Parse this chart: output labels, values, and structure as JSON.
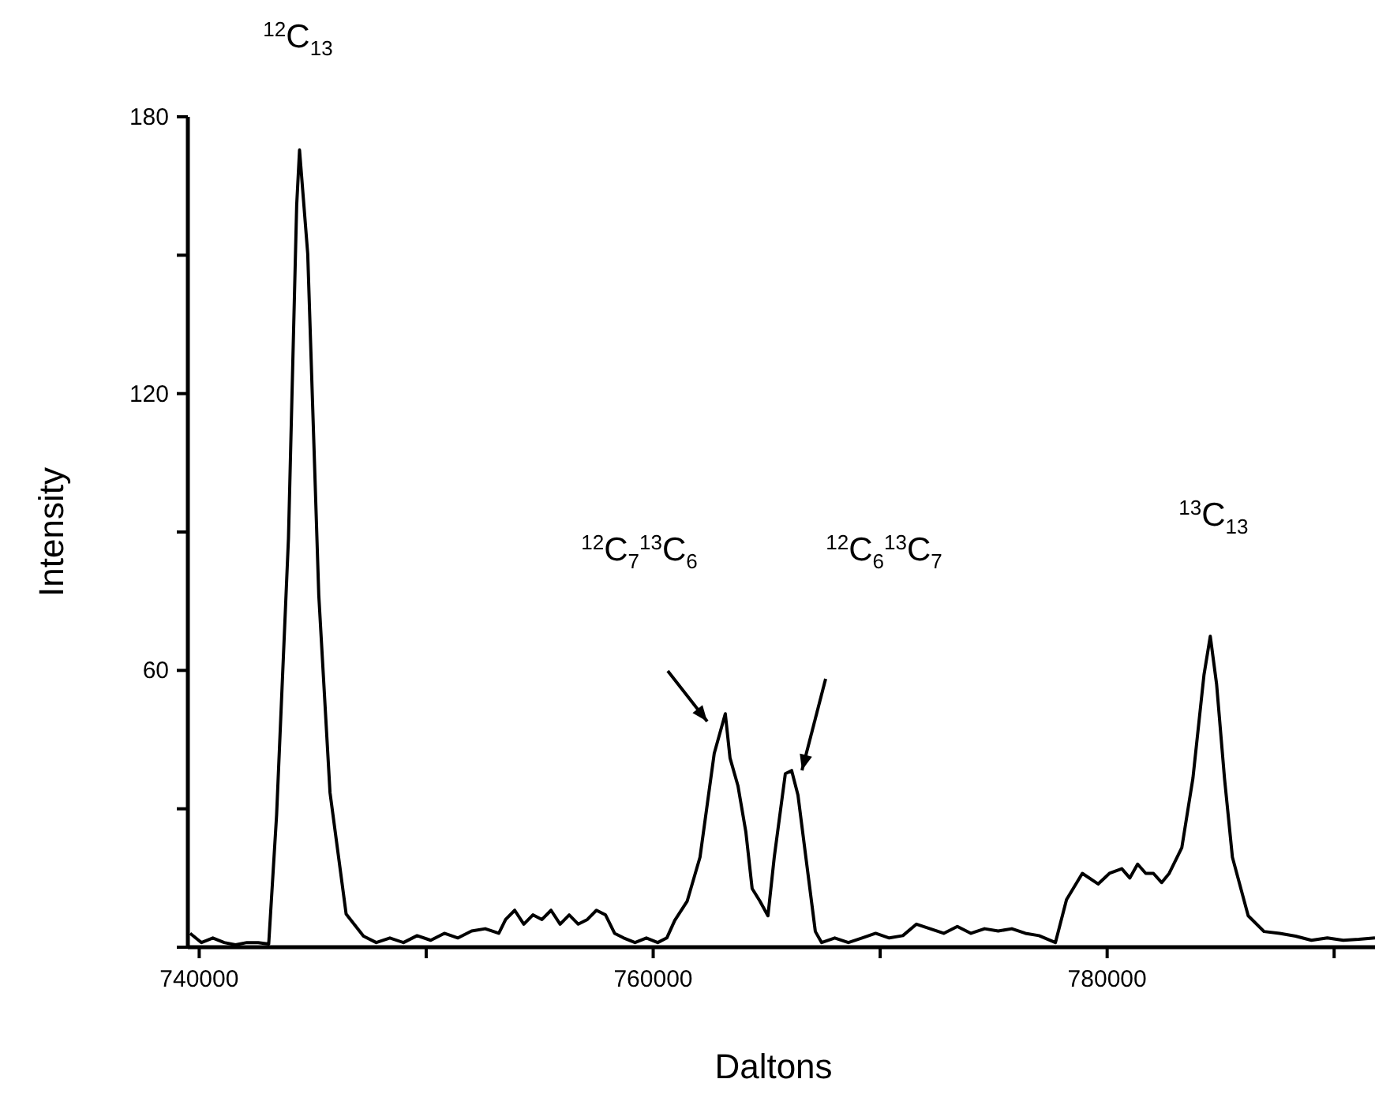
{
  "chart_data": {
    "type": "line",
    "xlabel": "Daltons",
    "ylabel": "Intensity",
    "xlim": [
      739500,
      791800
    ],
    "ylim": [
      0,
      180
    ],
    "xticks": [
      740000,
      {
        "value": 750000,
        "label": null
      },
      760000,
      {
        "value": 770000,
        "label": null
      },
      780000,
      {
        "value": 790000,
        "label": null
      }
    ],
    "yticks": [
      {
        "value": 0,
        "label": null
      },
      {
        "value": 30,
        "label": null
      },
      60,
      {
        "value": 90,
        "label": null
      },
      120,
      {
        "value": 150,
        "label": null
      },
      180
    ],
    "grid": false,
    "marker": "none",
    "line_style": "solid",
    "series": [
      {
        "color": "#000000",
        "x": [
          739600,
          740100,
          740600,
          741100,
          741600,
          742100,
          742600,
          743062,
          743410,
          743932,
          744294,
          744420,
          744781,
          745268,
          745763,
          746473,
          747238,
          747800,
          748400,
          749000,
          749600,
          750200,
          750800,
          751400,
          752000,
          752600,
          753200,
          753500,
          753900,
          754300,
          754700,
          755100,
          755500,
          755900,
          756300,
          756700,
          757100,
          757500,
          757900,
          758300,
          758700,
          759200,
          759700,
          760200,
          760600,
          760950,
          761500,
          762063,
          762690,
          763177,
          763386,
          763734,
          764082,
          764360,
          764700,
          765056,
          765334,
          765822,
          766100,
          766378,
          766726,
          767144,
          767422,
          768000,
          768600,
          769200,
          769800,
          770400,
          771000,
          771600,
          772200,
          772800,
          773400,
          774000,
          774600,
          775200,
          775800,
          776400,
          777000,
          777720,
          778210,
          778906,
          779602,
          780100,
          780646,
          781000,
          781342,
          781700,
          782038,
          782400,
          782734,
          783290,
          783778,
          784265,
          784543,
          784822,
          785170,
          785518,
          786214,
          786910,
          787600,
          788302,
          789000,
          789700,
          790400,
          791086,
          791800
        ],
        "values": [
          3,
          1,
          2,
          1,
          0.5,
          1,
          1,
          0.7,
          28.7,
          88.6,
          160.8,
          172.8,
          150.3,
          76.3,
          33.5,
          7.2,
          2.4,
          1,
          2,
          1,
          2.5,
          1.5,
          3,
          2,
          3.5,
          4,
          3,
          6,
          8,
          5,
          7,
          6,
          8,
          5,
          7,
          5,
          6,
          8,
          7,
          3,
          2,
          1,
          2,
          1,
          2,
          5.8,
          10,
          19.5,
          42,
          50.6,
          41,
          35,
          25,
          12.7,
          10,
          6.8,
          19.5,
          37.6,
          38.3,
          33,
          19.5,
          3.4,
          1,
          2,
          1,
          2,
          3,
          2,
          2.5,
          5,
          4,
          3,
          4.5,
          3,
          4,
          3.5,
          4,
          3,
          2.5,
          1,
          10.3,
          16,
          13.7,
          16,
          17,
          15,
          18,
          16,
          16,
          14,
          16,
          21.6,
          36.6,
          59,
          67.4,
          57,
          36.6,
          19.5,
          6.8,
          3.4,
          3,
          2.4,
          1.5,
          2,
          1.5,
          1.7,
          2
        ]
      }
    ],
    "annotations": [
      {
        "text": "$^{12}$C$_{13}$",
        "x": 744420,
        "y": 172.8
      },
      "$^{12}$C$_{7}$$^{13}$C$_{6}$",
      "$^{12}$C$_{6}$$^{13}$C$_{7}$",
      {
        "text": "$^{13}$C$_{13}$",
        "x": 784543,
        "y": 67.4
      }
    ]
  }
}
